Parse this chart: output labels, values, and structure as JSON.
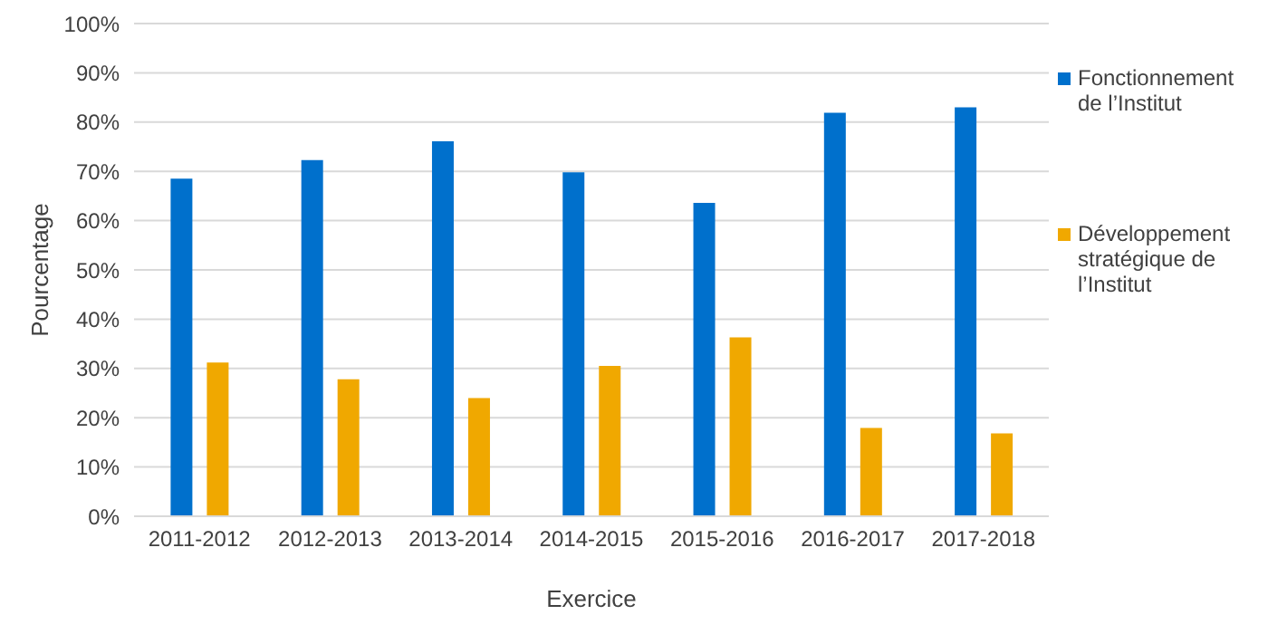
{
  "chart_data": {
    "type": "bar",
    "xlabel": "Exercice",
    "ylabel": "Pourcentage",
    "categories": [
      "2011-2012",
      "2012-2013",
      "2013-2014",
      "2014-2015",
      "2015-2016",
      "2016-2017",
      "2017-2018"
    ],
    "series": [
      {
        "name": "Fonctionnement de l’Institut",
        "color": "#0070cc",
        "values": [
          68.5,
          72.3,
          76.1,
          69.8,
          63.6,
          81.9,
          83.0
        ]
      },
      {
        "name": "Développement stratégique de l’Institut",
        "color": "#f0a800",
        "values": [
          31.2,
          27.8,
          24.0,
          30.5,
          36.3,
          17.9,
          16.8
        ]
      }
    ],
    "ylim": [
      0,
      100
    ],
    "yticks": [
      {
        "value": 0,
        "label": "0%"
      },
      {
        "value": 10,
        "label": "10%"
      },
      {
        "value": 20,
        "label": "20%"
      },
      {
        "value": 30,
        "label": "30%"
      },
      {
        "value": 40,
        "label": "40%"
      },
      {
        "value": 50,
        "label": "50%"
      },
      {
        "value": 60,
        "label": "60%"
      },
      {
        "value": 70,
        "label": "70%"
      },
      {
        "value": 80,
        "label": "80%"
      },
      {
        "value": 90,
        "label": "90%"
      },
      {
        "value": 100,
        "label": "100%"
      }
    ],
    "grid": "y",
    "legend": "right"
  }
}
